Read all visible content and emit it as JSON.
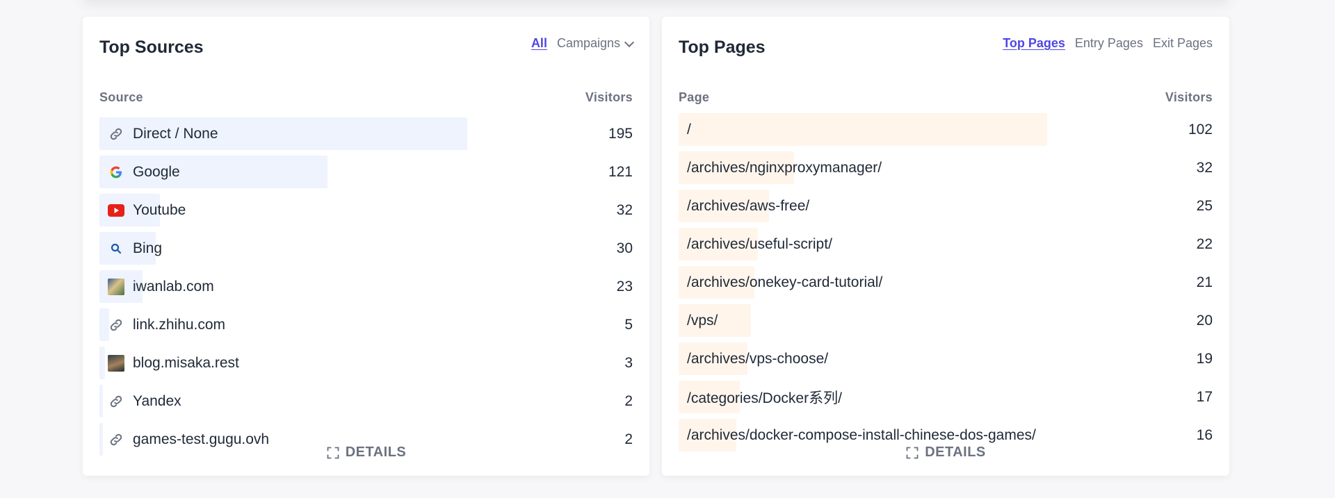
{
  "sources": {
    "title": "Top Sources",
    "tabs": {
      "all": "All",
      "campaigns": "Campaigns"
    },
    "columns": {
      "left": "Source",
      "right": "Visitors"
    },
    "max_value": 195,
    "rows": [
      {
        "label": "Direct / None",
        "value": "195",
        "icon": "link-icon"
      },
      {
        "label": "Google",
        "value": "121",
        "icon": "google-icon"
      },
      {
        "label": "Youtube",
        "value": "32",
        "icon": "youtube-icon"
      },
      {
        "label": "Bing",
        "value": "30",
        "icon": "search-icon"
      },
      {
        "label": "iwanlab.com",
        "value": "23",
        "icon": "site-favicon-icon"
      },
      {
        "label": "link.zhihu.com",
        "value": "5",
        "icon": "link-icon"
      },
      {
        "label": "blog.misaka.rest",
        "value": "3",
        "icon": "site-favicon-icon"
      },
      {
        "label": "Yandex",
        "value": "2",
        "icon": "link-icon"
      },
      {
        "label": "games-test.gugu.ovh",
        "value": "2",
        "icon": "link-icon"
      }
    ],
    "details_label": "DETAILS"
  },
  "pages": {
    "title": "Top Pages",
    "tabs": {
      "top": "Top Pages",
      "entry": "Entry Pages",
      "exit": "Exit Pages"
    },
    "columns": {
      "left": "Page",
      "right": "Visitors"
    },
    "max_value": 102,
    "rows": [
      {
        "label": "/",
        "value": "102"
      },
      {
        "label": "/archives/nginxproxymanager/",
        "value": "32"
      },
      {
        "label": "/archives/aws-free/",
        "value": "25"
      },
      {
        "label": "/archives/useful-script/",
        "value": "22"
      },
      {
        "label": "/archives/onekey-card-tutorial/",
        "value": "21"
      },
      {
        "label": "/vps/",
        "value": "20"
      },
      {
        "label": "/archives/vps-choose/",
        "value": "19"
      },
      {
        "label": "/categories/Docker系列/",
        "value": "17"
      },
      {
        "label": "/archives/docker-compose-install-chinese-dos-games/",
        "value": "16"
      }
    ],
    "details_label": "DETAILS"
  },
  "colors": {
    "accent": "#4f46e5",
    "source_bar": "#eef3fe",
    "page_bar": "#fff5eb"
  }
}
